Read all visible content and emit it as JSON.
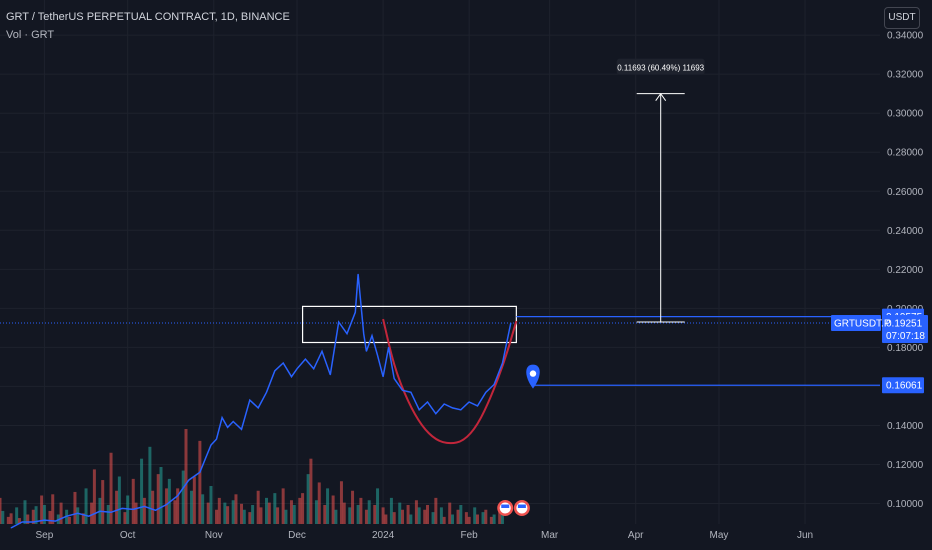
{
  "header": {
    "symbol_title": "GRT / TetherUS PERPETUAL CONTRACT, 1D, BINANCE",
    "volume_legend": "Vol · GRT",
    "currency_button": "USDT"
  },
  "colors": {
    "background": "#131722",
    "price_line": "#2962ff",
    "cup_curve": "#c2263b",
    "volume_up": "#26a69a",
    "volume_down": "#ef5350",
    "marker_blue": "#2962ff",
    "grid": "#1e222d",
    "axis_text": "#b2b5be"
  },
  "chart_data": {
    "type": "line",
    "title": "GRT / TetherUS PERPETUAL CONTRACT, 1D, BINANCE",
    "series": [
      {
        "name": "GRTUSDT.P",
        "x": [
          "2023-08-20",
          "2023-08-24",
          "2023-08-28",
          "2023-09-01",
          "2023-09-05",
          "2023-09-09",
          "2023-09-13",
          "2023-09-17",
          "2023-09-21",
          "2023-09-25",
          "2023-09-29",
          "2023-10-03",
          "2023-10-07",
          "2023-10-11",
          "2023-10-15",
          "2023-10-19",
          "2023-10-23",
          "2023-10-27",
          "2023-10-29",
          "2023-10-31",
          "2023-11-02",
          "2023-11-04",
          "2023-11-06",
          "2023-11-08",
          "2023-11-11",
          "2023-11-14",
          "2023-11-17",
          "2023-11-20",
          "2023-11-23",
          "2023-11-26",
          "2023-11-29",
          "2023-12-01",
          "2023-12-04",
          "2023-12-07",
          "2023-12-10",
          "2023-12-13",
          "2023-12-16",
          "2023-12-19",
          "2023-12-22",
          "2023-12-23",
          "2023-12-25",
          "2023-12-26",
          "2023-12-28",
          "2023-12-30",
          "2024-01-01",
          "2024-01-03",
          "2024-01-05",
          "2024-01-08",
          "2024-01-11",
          "2024-01-14",
          "2024-01-17",
          "2024-01-20",
          "2024-01-23",
          "2024-01-26",
          "2024-01-29",
          "2024-02-01",
          "2024-02-04",
          "2024-02-07",
          "2024-02-10",
          "2024-02-13",
          "2024-02-16"
        ],
        "values": [
          0.0875,
          0.0905,
          0.0905,
          0.0915,
          0.091,
          0.0935,
          0.095,
          0.0935,
          0.096,
          0.0955,
          0.0975,
          0.097,
          0.0985,
          0.0965,
          0.0995,
          0.104,
          0.112,
          0.116,
          0.123,
          0.13,
          0.133,
          0.144,
          0.139,
          0.142,
          0.138,
          0.153,
          0.149,
          0.157,
          0.168,
          0.172,
          0.165,
          0.169,
          0.174,
          0.169,
          0.178,
          0.166,
          0.193,
          0.187,
          0.198,
          0.2175,
          0.187,
          0.178,
          0.186,
          0.176,
          0.165,
          0.18,
          0.164,
          0.158,
          0.157,
          0.148,
          0.152,
          0.146,
          0.151,
          0.149,
          0.148,
          0.152,
          0.15,
          0.157,
          0.161,
          0.172,
          0.1925
        ]
      }
    ],
    "volume": {
      "name": "Vol · GRT",
      "values": [
        22,
        11,
        6,
        9,
        14,
        5,
        20,
        8,
        12,
        15,
        24,
        16,
        11,
        25,
        8,
        18,
        12,
        6,
        27,
        14,
        9,
        30,
        18,
        46,
        22,
        37,
        16,
        60,
        28,
        40,
        10,
        24,
        38,
        18,
        55,
        22,
        65,
        28,
        42,
        48,
        30,
        38,
        20,
        30,
        45,
        80,
        28,
        40,
        70,
        25,
        18,
        32,
        12,
        22,
        18,
        15,
        20,
        25,
        17,
        12,
        10,
        16,
        28,
        14,
        22,
        18,
        26,
        14,
        30,
        12,
        20,
        16,
        22,
        26,
        42,
        55,
        20,
        35,
        16,
        30,
        24,
        12,
        36,
        18,
        14,
        28,
        16,
        22,
        12,
        20,
        16,
        30,
        14,
        8,
        22,
        10,
        18,
        12,
        16,
        8,
        20,
        14,
        12,
        16,
        10,
        22,
        14,
        6,
        18,
        8,
        12,
        16,
        10,
        6,
        14,
        8,
        10,
        12,
        6,
        8,
        10,
        14
      ]
    },
    "cup_curve": {
      "x": [
        "2024-01-01",
        "2024-01-05",
        "2024-01-10",
        "2024-01-15",
        "2024-01-20",
        "2024-01-25",
        "2024-01-30",
        "2024-02-04",
        "2024-02-09",
        "2024-02-14",
        "2024-02-18"
      ],
      "values": [
        0.1945,
        0.17,
        0.152,
        0.1395,
        0.1325,
        0.1305,
        0.132,
        0.14,
        0.155,
        0.174,
        0.1935
      ]
    },
    "box_zone": {
      "x0": "2023-12-03",
      "x1": "2024-02-18",
      "y_top": 0.201,
      "y_bottom": 0.1825
    },
    "measure": {
      "x": "2024-04-10",
      "from": 0.193,
      "to": 0.31,
      "label": "0.11693 (60.49%) 11693"
    },
    "horizontal_lines": [
      {
        "value": 0.19575,
        "label": "0.19575"
      },
      {
        "value": 0.16061,
        "label": "0.16061"
      }
    ],
    "marker": {
      "x": "2024-02-24",
      "value": 0.164
    },
    "last_price": {
      "symbol": "GRTUSDT.P",
      "value": "0.19251",
      "countdown": "07:07:18",
      "level": 0.1925
    },
    "y_axis": {
      "ylim": [
        0.0895,
        0.358
      ],
      "ticks": [
        "0.10000",
        "0.12000",
        "0.14000",
        "0.16000",
        "0.18000",
        "0.20000",
        "0.22000",
        "0.24000",
        "0.26000",
        "0.28000",
        "0.30000",
        "0.32000",
        "0.34000"
      ]
    },
    "x_axis": {
      "xlim": [
        "2023-08-16",
        "2024-06-28"
      ],
      "labels": [
        {
          "date": "2023-09-01",
          "text": "Sep"
        },
        {
          "date": "2023-10-01",
          "text": "Oct"
        },
        {
          "date": "2023-11-01",
          "text": "Nov"
        },
        {
          "date": "2023-12-01",
          "text": "Dec"
        },
        {
          "date": "2024-01-01",
          "text": "2024"
        },
        {
          "date": "2024-02-01",
          "text": "Feb"
        },
        {
          "date": "2024-03-01",
          "text": "Mar"
        },
        {
          "date": "2024-04-01",
          "text": "Apr"
        },
        {
          "date": "2024-05-01",
          "text": "May"
        },
        {
          "date": "2024-06-01",
          "text": "Jun"
        }
      ]
    },
    "grid": true
  }
}
